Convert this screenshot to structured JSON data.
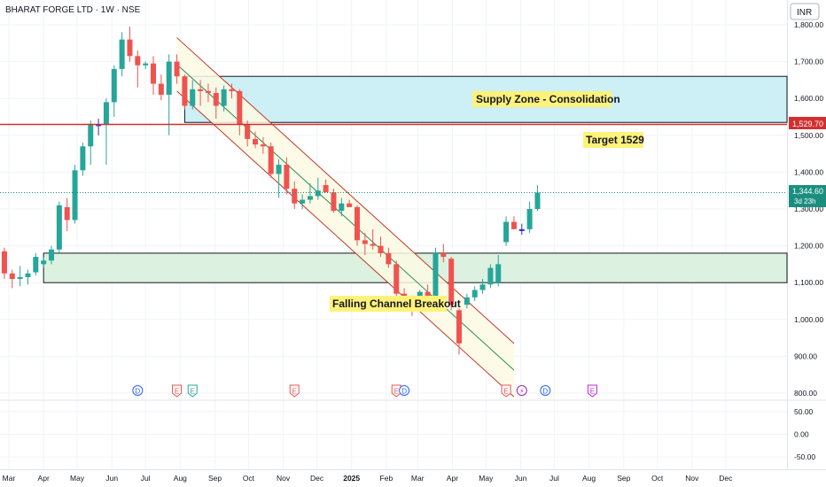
{
  "header": {
    "symbol_title": "BHARAT FORGE LTD · 1W · NSE",
    "currency": "INR"
  },
  "colors": {
    "up": "#26a69a",
    "down": "#ef5350",
    "neutral_candle": "#2c2cd6",
    "supply_zone_fill": "#cdeff6",
    "demand_zone_fill": "#dcf1df",
    "channel_fill": "#fdfae3",
    "channel_edge": "#c0392b",
    "channel_mid": "#2e8b57",
    "target_line": "#d32f2f",
    "label_bg": "#fff27a",
    "current_price_bg": "#1b8f7f"
  },
  "annotations": {
    "supply_zone_label": "Supply Zone - Consolidation",
    "target_label": "Target 1529",
    "channel_label": "Falling Channel Breakout"
  },
  "price_tags": {
    "target": "1,529.70",
    "current": "1,344.60",
    "countdown": "3d 23h"
  },
  "events": [
    {
      "label": "E",
      "color": "#ef5350",
      "date": "2024-07-29"
    },
    {
      "label": "D",
      "color": "#2962ff",
      "date": "2024-06-24"
    },
    {
      "label": "E",
      "color": "#26a69a",
      "date": "2024-08-12"
    },
    {
      "label": "E",
      "color": "#ef5350",
      "date": "2024-11-11"
    },
    {
      "label": "E",
      "color": "#ef5350",
      "date": "2025-02-10"
    },
    {
      "label": "D",
      "color": "#2962ff",
      "date": "2025-02-17"
    },
    {
      "label": "E",
      "color": "#ef5350",
      "date": "2025-05-19"
    },
    {
      "label": "⚡",
      "color": "#9c27b0",
      "date": "2025-06-02"
    },
    {
      "label": "D",
      "color": "#2962ff",
      "date": "2025-06-23"
    },
    {
      "label": "E",
      "color": "#c026d3",
      "date": "2025-08-04"
    }
  ],
  "chart_data": [
    {
      "type": "candlestick",
      "title": "BHARAT FORGE LTD · 1W · NSE",
      "y_unit": "INR",
      "y_ticks": [
        800,
        900,
        1000,
        1100,
        1200,
        1300,
        1400,
        1500,
        1600,
        1700,
        1800
      ],
      "y_tick_labels": [
        "800.00",
        "900.00",
        "1,000.00",
        "1,100.00",
        "1,200.00",
        "1,300.00",
        "1,400.00",
        "1,500.00",
        "1,600.00",
        "1,700.00",
        "1,800.00"
      ],
      "x_tick_labels": [
        "Mar",
        "Apr",
        "May",
        "Jun",
        "Jul",
        "Aug",
        "Sep",
        "Oct",
        "Nov",
        "Dec",
        "2025",
        "Feb",
        "Mar",
        "Apr",
        "May",
        "Jun",
        "Jul",
        "Aug",
        "Sep",
        "Oct",
        "Nov",
        "Dec"
      ],
      "x_tick_dates": [
        "2024-03-01",
        "2024-04-01",
        "2024-05-01",
        "2024-06-01",
        "2024-07-01",
        "2024-08-01",
        "2024-09-01",
        "2024-10-01",
        "2024-11-01",
        "2024-12-01",
        "2025-01-01",
        "2025-02-01",
        "2025-03-01",
        "2025-04-01",
        "2025-05-01",
        "2025-06-01",
        "2025-07-01",
        "2025-08-01",
        "2025-09-01",
        "2025-10-01",
        "2025-11-01",
        "2025-12-01"
      ],
      "zones": [
        {
          "name": "Supply Zone - Consolidation",
          "from_date": "2024-08-05",
          "to_date": "2025-12-31",
          "low": 1535,
          "high": 1660
        },
        {
          "name": "demand-zone",
          "from_date": "2024-04-01",
          "to_date": "2025-12-31",
          "low": 1100,
          "high": 1180
        }
      ],
      "target_line": 1529.7,
      "channel": {
        "upper_start": {
          "date": "2024-07-29",
          "price": 1765
        },
        "upper_end": {
          "date": "2025-05-26",
          "price": 935
        },
        "lower_start": {
          "date": "2024-07-29",
          "price": 1620
        },
        "lower_end": {
          "date": "2025-05-26",
          "price": 790
        }
      },
      "candles": [
        {
          "date": "2024-02-19",
          "o": 1165,
          "h": 1205,
          "l": 1120,
          "c": 1185
        },
        {
          "date": "2024-02-26",
          "o": 1185,
          "h": 1195,
          "l": 1110,
          "c": 1125
        },
        {
          "date": "2024-03-04",
          "o": 1125,
          "h": 1135,
          "l": 1085,
          "c": 1110
        },
        {
          "date": "2024-03-11",
          "o": 1112,
          "h": 1145,
          "l": 1090,
          "c": 1115
        },
        {
          "date": "2024-03-18",
          "o": 1115,
          "h": 1135,
          "l": 1095,
          "c": 1125
        },
        {
          "date": "2024-03-25",
          "o": 1128,
          "h": 1180,
          "l": 1120,
          "c": 1170
        },
        {
          "date": "2024-04-01",
          "o": 1150,
          "h": 1170,
          "l": 1140,
          "c": 1160
        },
        {
          "date": "2024-04-08",
          "o": 1160,
          "h": 1200,
          "l": 1150,
          "c": 1190
        },
        {
          "date": "2024-04-15",
          "o": 1190,
          "h": 1320,
          "l": 1180,
          "c": 1310
        },
        {
          "date": "2024-04-22",
          "o": 1305,
          "h": 1330,
          "l": 1240,
          "c": 1270
        },
        {
          "date": "2024-04-29",
          "o": 1270,
          "h": 1420,
          "l": 1260,
          "c": 1405
        },
        {
          "date": "2024-05-06",
          "o": 1405,
          "h": 1480,
          "l": 1390,
          "c": 1470
        },
        {
          "date": "2024-05-13",
          "o": 1470,
          "h": 1540,
          "l": 1420,
          "c": 1530
        },
        {
          "date": "2024-05-20",
          "o": 1530,
          "h": 1545,
          "l": 1500,
          "c": 1530
        },
        {
          "date": "2024-05-27",
          "o": 1530,
          "h": 1600,
          "l": 1420,
          "c": 1590
        },
        {
          "date": "2024-06-03",
          "o": 1590,
          "h": 1690,
          "l": 1550,
          "c": 1680
        },
        {
          "date": "2024-06-10",
          "o": 1680,
          "h": 1780,
          "l": 1660,
          "c": 1760
        },
        {
          "date": "2024-06-17",
          "o": 1760,
          "h": 1795,
          "l": 1700,
          "c": 1715
        },
        {
          "date": "2024-06-24",
          "o": 1715,
          "h": 1730,
          "l": 1630,
          "c": 1690
        },
        {
          "date": "2024-07-01",
          "o": 1690,
          "h": 1700,
          "l": 1680,
          "c": 1695
        },
        {
          "date": "2024-07-08",
          "o": 1695,
          "h": 1715,
          "l": 1610,
          "c": 1640
        },
        {
          "date": "2024-07-15",
          "o": 1640,
          "h": 1665,
          "l": 1595,
          "c": 1610
        },
        {
          "date": "2024-07-22",
          "o": 1610,
          "h": 1720,
          "l": 1500,
          "c": 1700
        },
        {
          "date": "2024-07-29",
          "o": 1700,
          "h": 1720,
          "l": 1640,
          "c": 1660
        },
        {
          "date": "2024-08-05",
          "o": 1660,
          "h": 1665,
          "l": 1570,
          "c": 1580
        },
        {
          "date": "2024-08-12",
          "o": 1580,
          "h": 1650,
          "l": 1570,
          "c": 1625
        },
        {
          "date": "2024-08-19",
          "o": 1625,
          "h": 1650,
          "l": 1580,
          "c": 1620
        },
        {
          "date": "2024-08-26",
          "o": 1620,
          "h": 1640,
          "l": 1590,
          "c": 1615
        },
        {
          "date": "2024-09-02",
          "o": 1615,
          "h": 1630,
          "l": 1545,
          "c": 1580
        },
        {
          "date": "2024-09-09",
          "o": 1580,
          "h": 1635,
          "l": 1565,
          "c": 1625
        },
        {
          "date": "2024-09-16",
          "o": 1625,
          "h": 1640,
          "l": 1600,
          "c": 1620
        },
        {
          "date": "2024-09-23",
          "o": 1620,
          "h": 1625,
          "l": 1500,
          "c": 1530
        },
        {
          "date": "2024-09-30",
          "o": 1530,
          "h": 1540,
          "l": 1470,
          "c": 1490
        },
        {
          "date": "2024-10-07",
          "o": 1490,
          "h": 1510,
          "l": 1465,
          "c": 1475
        },
        {
          "date": "2024-10-14",
          "o": 1475,
          "h": 1495,
          "l": 1450,
          "c": 1470
        },
        {
          "date": "2024-10-21",
          "o": 1470,
          "h": 1480,
          "l": 1385,
          "c": 1395
        },
        {
          "date": "2024-10-28",
          "o": 1395,
          "h": 1435,
          "l": 1330,
          "c": 1420
        },
        {
          "date": "2024-11-04",
          "o": 1420,
          "h": 1440,
          "l": 1340,
          "c": 1355
        },
        {
          "date": "2024-11-11",
          "o": 1355,
          "h": 1375,
          "l": 1300,
          "c": 1315
        },
        {
          "date": "2024-11-18",
          "o": 1315,
          "h": 1340,
          "l": 1300,
          "c": 1325
        },
        {
          "date": "2024-11-25",
          "o": 1325,
          "h": 1370,
          "l": 1315,
          "c": 1335
        },
        {
          "date": "2024-12-02",
          "o": 1335,
          "h": 1385,
          "l": 1325,
          "c": 1350
        },
        {
          "date": "2024-12-09",
          "o": 1365,
          "h": 1380,
          "l": 1350,
          "c": 1345
        },
        {
          "date": "2024-12-16",
          "o": 1345,
          "h": 1355,
          "l": 1290,
          "c": 1295
        },
        {
          "date": "2024-12-23",
          "o": 1295,
          "h": 1330,
          "l": 1280,
          "c": 1315
        },
        {
          "date": "2024-12-30",
          "o": 1315,
          "h": 1325,
          "l": 1310,
          "c": 1305
        },
        {
          "date": "2025-01-06",
          "o": 1305,
          "h": 1310,
          "l": 1200,
          "c": 1215
        },
        {
          "date": "2025-01-13",
          "o": 1215,
          "h": 1235,
          "l": 1175,
          "c": 1205
        },
        {
          "date": "2025-01-20",
          "o": 1205,
          "h": 1245,
          "l": 1190,
          "c": 1200
        },
        {
          "date": "2025-01-27",
          "o": 1200,
          "h": 1225,
          "l": 1170,
          "c": 1180
        },
        {
          "date": "2025-02-03",
          "o": 1180,
          "h": 1195,
          "l": 1140,
          "c": 1150
        },
        {
          "date": "2025-02-10",
          "o": 1150,
          "h": 1160,
          "l": 1050,
          "c": 1070
        },
        {
          "date": "2025-02-17",
          "o": 1070,
          "h": 1085,
          "l": 1055,
          "c": 1060
        },
        {
          "date": "2025-02-24",
          "o": 1060,
          "h": 1065,
          "l": 1010,
          "c": 1025
        },
        {
          "date": "2025-03-03",
          "o": 1035,
          "h": 1080,
          "l": 1025,
          "c": 1075
        },
        {
          "date": "2025-03-10",
          "o": 1075,
          "h": 1095,
          "l": 1040,
          "c": 1050
        },
        {
          "date": "2025-03-17",
          "o": 1050,
          "h": 1195,
          "l": 1045,
          "c": 1180
        },
        {
          "date": "2025-03-24",
          "o": 1180,
          "h": 1205,
          "l": 1155,
          "c": 1170
        },
        {
          "date": "2025-03-31",
          "o": 1165,
          "h": 1170,
          "l": 1025,
          "c": 1040
        },
        {
          "date": "2025-04-07",
          "o": 1025,
          "h": 1030,
          "l": 905,
          "c": 935
        },
        {
          "date": "2025-04-14",
          "o": 1040,
          "h": 1070,
          "l": 1030,
          "c": 1060
        },
        {
          "date": "2025-04-21",
          "o": 1060,
          "h": 1090,
          "l": 1050,
          "c": 1080
        },
        {
          "date": "2025-04-28",
          "o": 1080,
          "h": 1110,
          "l": 1070,
          "c": 1095
        },
        {
          "date": "2025-05-05",
          "o": 1095,
          "h": 1150,
          "l": 1085,
          "c": 1140
        },
        {
          "date": "2025-05-12",
          "o": 1100,
          "h": 1175,
          "l": 1090,
          "c": 1150
        },
        {
          "date": "2025-05-19",
          "o": 1210,
          "h": 1280,
          "l": 1200,
          "c": 1265
        },
        {
          "date": "2025-05-26",
          "o": 1265,
          "h": 1280,
          "l": 1250,
          "c": 1245
        },
        {
          "date": "2025-06-02",
          "o": 1245,
          "h": 1260,
          "l": 1230,
          "c": 1245
        },
        {
          "date": "2025-06-09",
          "o": 1245,
          "h": 1320,
          "l": 1235,
          "c": 1300
        },
        {
          "date": "2025-06-16",
          "o": 1300,
          "h": 1365,
          "l": 1295,
          "c": 1344.6
        }
      ]
    },
    {
      "type": "line",
      "role": "lower-indicator-pane",
      "y_ticks": [
        -50,
        0,
        50
      ],
      "y_tick_labels": [
        "-50.00",
        "0.00",
        "50.00"
      ],
      "series": []
    }
  ]
}
